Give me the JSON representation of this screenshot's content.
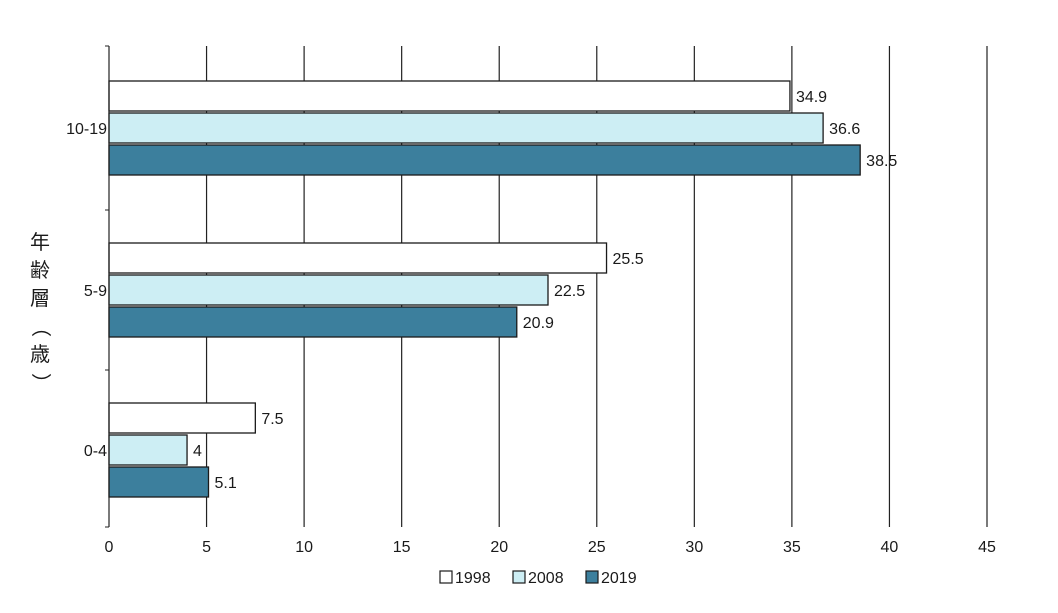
{
  "chart_data": {
    "type": "bar",
    "orientation": "horizontal",
    "title": "",
    "xlabel": "",
    "ylabel": "年齢層（歳）",
    "categories": [
      "10-19",
      "5-9",
      "0-4"
    ],
    "series": [
      {
        "name": "1998",
        "color": "#ffffff",
        "values": [
          34.9,
          25.5,
          7.5
        ],
        "labels": [
          "34.9",
          "25.5",
          "7.5"
        ]
      },
      {
        "name": "2008",
        "color": "#cdeef4",
        "values": [
          36.6,
          22.5,
          4
        ],
        "labels": [
          "36.6",
          "22.5",
          "4"
        ]
      },
      {
        "name": "2019",
        "color": "#3c7f9d",
        "values": [
          38.5,
          20.9,
          5.1
        ],
        "labels": [
          "38.5",
          "20.9",
          "5.1"
        ]
      }
    ],
    "xlim": [
      0,
      45
    ],
    "xticks": [
      "0",
      "5",
      "10",
      "15",
      "20",
      "25",
      "30",
      "35",
      "40",
      "45"
    ],
    "grid": "vertical",
    "legend_position": "bottom"
  }
}
